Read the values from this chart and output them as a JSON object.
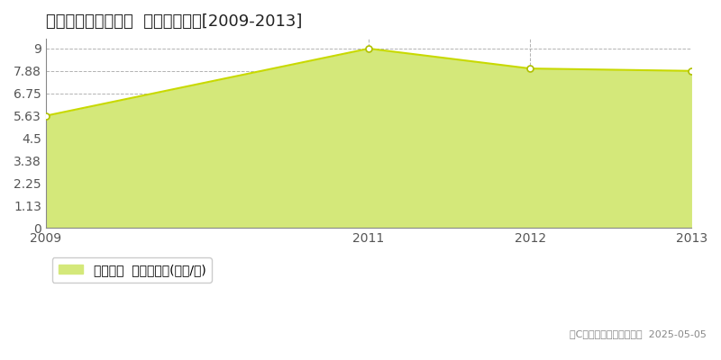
{
  "title": "比企郡小川町東小川  土地価格推移[2009-2013]",
  "x": [
    2009,
    2011,
    2012,
    2013
  ],
  "y": [
    5.63,
    9.0,
    8.0,
    7.88
  ],
  "yticks": [
    0,
    1.13,
    2.25,
    3.38,
    4.5,
    5.63,
    6.75,
    7.88,
    9
  ],
  "ytick_labels": [
    "0",
    "1.13",
    "2.25",
    "3.38",
    "4.5",
    "5.63",
    "6.75",
    "7.88",
    "9"
  ],
  "xlim": [
    2009,
    2013
  ],
  "ylim": [
    0,
    9.5
  ],
  "line_color": "#c8d900",
  "fill_color": "#d4e87a",
  "fill_alpha": 1.0,
  "marker_color": "#b0c000",
  "marker_face": "white",
  "grid_color": "#aaaaaa",
  "bg_color": "#ffffff",
  "plot_bg_color": "#ffffff",
  "legend_label": "土地価格  平均坪単価(万円/坪)",
  "copyright_text": "（C）土地価格ドットコム  2025-05-05",
  "title_fontsize": 13,
  "tick_fontsize": 10,
  "legend_fontsize": 10
}
